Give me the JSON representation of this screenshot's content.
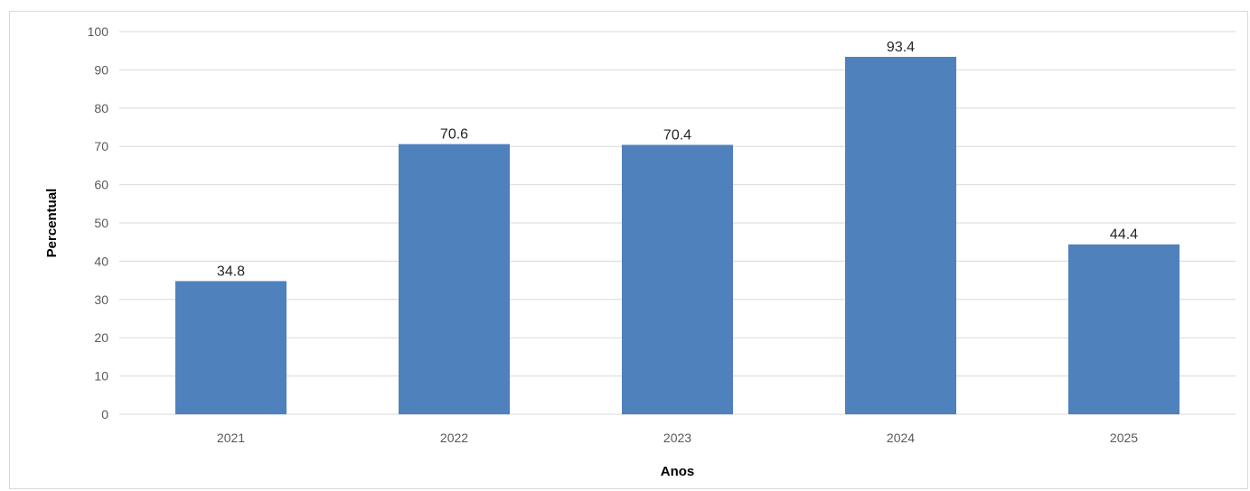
{
  "chart_data": {
    "type": "bar",
    "categories": [
      "2021",
      "2022",
      "2023",
      "2024",
      "2025"
    ],
    "values": [
      34.8,
      70.6,
      70.4,
      93.4,
      44.4
    ],
    "data_labels": [
      "34.8",
      "70.6",
      "70.4",
      "93.4",
      "44.4"
    ],
    "yticks": [
      "0",
      "10",
      "20",
      "30",
      "40",
      "50",
      "60",
      "70",
      "80",
      "90",
      "100"
    ],
    "title": "",
    "xlabel": "Anos",
    "ylabel": "Percentual",
    "ylim": [
      0,
      100
    ],
    "grid": true,
    "legend": "none",
    "bar_color": "#4f81bd",
    "grid_color": "#d9d9d9"
  }
}
